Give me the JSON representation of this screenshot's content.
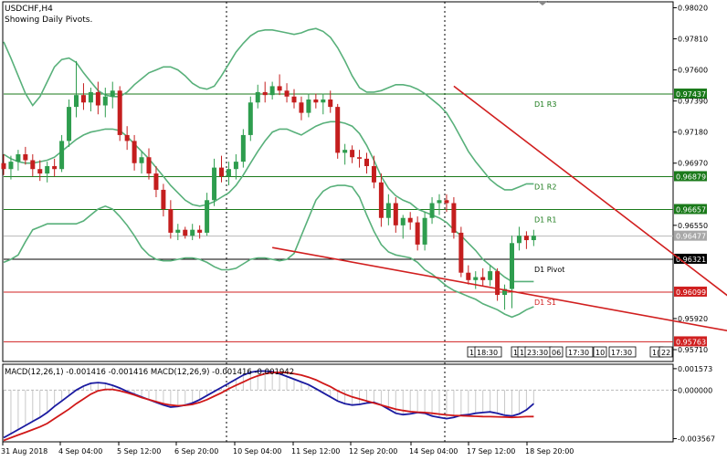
{
  "header": {
    "symbol": "USDCHF,H4",
    "subtitle": "Showing Daily Pivots."
  },
  "colors": {
    "bull": "#2e9d4e",
    "bear": "#c41e1e",
    "bands": "#58b07a",
    "trend": "#d11f1f",
    "green_level": "#1a7a1a",
    "red_level": "#d02020",
    "macd": "#1a1aa0",
    "signal": "#d01818"
  },
  "price_axis": {
    "ticks": [
      "0.98020",
      "0.97810",
      "0.97600",
      "0.97390",
      "0.97180",
      "0.96970",
      "0.96550",
      "0.95920",
      "0.95710"
    ],
    "range": [
      0.9563,
      0.9806
    ]
  },
  "levels": [
    {
      "name": "D1 R3",
      "value": 0.97437,
      "label": "0.97437",
      "kind": "green"
    },
    {
      "name": "D1 R2",
      "value": 0.96879,
      "label": "0.96879",
      "kind": "green"
    },
    {
      "name": "D1 R1",
      "value": 0.96657,
      "label": "0.96657",
      "kind": "green"
    },
    {
      "name": "D1 Pivot",
      "value": 0.96321,
      "label": "0.96321",
      "kind": "black"
    },
    {
      "name": "D1 S1",
      "value": 0.96099,
      "label": "0.96099",
      "kind": "red"
    },
    {
      "name": "D1 S2",
      "value": 0.95763,
      "label": "0.95763",
      "kind": "red"
    }
  ],
  "current_price": {
    "value": 0.96477,
    "label": "0.96477"
  },
  "time_axis": {
    "labels": [
      "31 Aug 2018",
      "4 Sep 04:00",
      "5 Sep 12:00",
      "6 Sep 20:00",
      "10 Sep 04:00",
      "11 Sep 12:00",
      "12 Sep 20:00",
      "14 Sep 04:00",
      "17 Sep 12:00",
      "18 Sep 20:00"
    ]
  },
  "period_tags": [
    "1",
    "18:30",
    "1",
    "1",
    "23:30",
    "06",
    "17:30",
    "10",
    "17:30",
    "1(",
    "22"
  ],
  "macd": {
    "label": "MACD(12,26,1) -0.001416 -0.001416 MACD(12,26,9) -0.001416 -0.001942",
    "ticks": [
      "0.001573",
      "0.000000",
      "-0.003567"
    ],
    "range": [
      -0.0038,
      0.0019
    ]
  },
  "chart_data": {
    "type": "candlestick",
    "title": "USDCHF,H4",
    "candles": [
      {
        "o": 0.9697,
        "h": 0.9703,
        "l": 0.9689,
        "c": 0.9693
      },
      {
        "o": 0.9693,
        "h": 0.9702,
        "l": 0.9686,
        "c": 0.9698
      },
      {
        "o": 0.9698,
        "h": 0.9706,
        "l": 0.9692,
        "c": 0.9703
      },
      {
        "o": 0.9703,
        "h": 0.9708,
        "l": 0.9696,
        "c": 0.9699
      },
      {
        "o": 0.9699,
        "h": 0.9703,
        "l": 0.9688,
        "c": 0.9693
      },
      {
        "o": 0.9693,
        "h": 0.9699,
        "l": 0.9685,
        "c": 0.969
      },
      {
        "o": 0.969,
        "h": 0.9698,
        "l": 0.9684,
        "c": 0.9695
      },
      {
        "o": 0.9695,
        "h": 0.97,
        "l": 0.9688,
        "c": 0.9693
      },
      {
        "o": 0.9693,
        "h": 0.9716,
        "l": 0.9691,
        "c": 0.9712
      },
      {
        "o": 0.9712,
        "h": 0.974,
        "l": 0.9708,
        "c": 0.9735
      },
      {
        "o": 0.9735,
        "h": 0.9766,
        "l": 0.9728,
        "c": 0.9743
      },
      {
        "o": 0.9743,
        "h": 0.9751,
        "l": 0.9733,
        "c": 0.9738
      },
      {
        "o": 0.9738,
        "h": 0.9748,
        "l": 0.9732,
        "c": 0.9745
      },
      {
        "o": 0.9745,
        "h": 0.9752,
        "l": 0.973,
        "c": 0.9736
      },
      {
        "o": 0.9736,
        "h": 0.9748,
        "l": 0.9728,
        "c": 0.9742
      },
      {
        "o": 0.9742,
        "h": 0.9752,
        "l": 0.9734,
        "c": 0.9746
      },
      {
        "o": 0.9746,
        "h": 0.9749,
        "l": 0.9712,
        "c": 0.9716
      },
      {
        "o": 0.9716,
        "h": 0.9722,
        "l": 0.9706,
        "c": 0.9712
      },
      {
        "o": 0.9712,
        "h": 0.9716,
        "l": 0.9692,
        "c": 0.9697
      },
      {
        "o": 0.9697,
        "h": 0.9705,
        "l": 0.969,
        "c": 0.9701
      },
      {
        "o": 0.9701,
        "h": 0.9707,
        "l": 0.9686,
        "c": 0.969
      },
      {
        "o": 0.969,
        "h": 0.9695,
        "l": 0.9674,
        "c": 0.9679
      },
      {
        "o": 0.9679,
        "h": 0.9683,
        "l": 0.9661,
        "c": 0.9666
      },
      {
        "o": 0.9666,
        "h": 0.9672,
        "l": 0.9646,
        "c": 0.965
      },
      {
        "o": 0.965,
        "h": 0.9656,
        "l": 0.9645,
        "c": 0.9652
      },
      {
        "o": 0.9652,
        "h": 0.9654,
        "l": 0.9646,
        "c": 0.9648
      },
      {
        "o": 0.9648,
        "h": 0.9656,
        "l": 0.9645,
        "c": 0.9652
      },
      {
        "o": 0.9652,
        "h": 0.9655,
        "l": 0.9646,
        "c": 0.965
      },
      {
        "o": 0.965,
        "h": 0.9677,
        "l": 0.9648,
        "c": 0.9672
      },
      {
        "o": 0.9672,
        "h": 0.97,
        "l": 0.9668,
        "c": 0.9694
      },
      {
        "o": 0.9694,
        "h": 0.9702,
        "l": 0.9684,
        "c": 0.9688
      },
      {
        "o": 0.9688,
        "h": 0.9698,
        "l": 0.9682,
        "c": 0.9693
      },
      {
        "o": 0.9693,
        "h": 0.9703,
        "l": 0.9686,
        "c": 0.9698
      },
      {
        "o": 0.9698,
        "h": 0.972,
        "l": 0.9694,
        "c": 0.9716
      },
      {
        "o": 0.9716,
        "h": 0.9742,
        "l": 0.9712,
        "c": 0.9738
      },
      {
        "o": 0.9738,
        "h": 0.975,
        "l": 0.9734,
        "c": 0.9745
      },
      {
        "o": 0.9745,
        "h": 0.9752,
        "l": 0.9738,
        "c": 0.9743
      },
      {
        "o": 0.9743,
        "h": 0.9752,
        "l": 0.974,
        "c": 0.9749
      },
      {
        "o": 0.9749,
        "h": 0.9757,
        "l": 0.9743,
        "c": 0.9746
      },
      {
        "o": 0.9746,
        "h": 0.9751,
        "l": 0.9738,
        "c": 0.9742
      },
      {
        "o": 0.9742,
        "h": 0.9747,
        "l": 0.9734,
        "c": 0.9738
      },
      {
        "o": 0.9738,
        "h": 0.9742,
        "l": 0.9726,
        "c": 0.9731
      },
      {
        "o": 0.9731,
        "h": 0.9744,
        "l": 0.9728,
        "c": 0.974
      },
      {
        "o": 0.974,
        "h": 0.9744,
        "l": 0.9734,
        "c": 0.9738
      },
      {
        "o": 0.9738,
        "h": 0.9744,
        "l": 0.973,
        "c": 0.974
      },
      {
        "o": 0.974,
        "h": 0.9746,
        "l": 0.9731,
        "c": 0.9735
      },
      {
        "o": 0.9735,
        "h": 0.9737,
        "l": 0.97,
        "c": 0.9704
      },
      {
        "o": 0.9704,
        "h": 0.971,
        "l": 0.9696,
        "c": 0.9706
      },
      {
        "o": 0.9706,
        "h": 0.9709,
        "l": 0.9697,
        "c": 0.9701
      },
      {
        "o": 0.9701,
        "h": 0.9706,
        "l": 0.9694,
        "c": 0.97
      },
      {
        "o": 0.97,
        "h": 0.9704,
        "l": 0.969,
        "c": 0.9695
      },
      {
        "o": 0.9695,
        "h": 0.9702,
        "l": 0.968,
        "c": 0.9684
      },
      {
        "o": 0.9684,
        "h": 0.969,
        "l": 0.9654,
        "c": 0.966
      },
      {
        "o": 0.966,
        "h": 0.9676,
        "l": 0.9655,
        "c": 0.967
      },
      {
        "o": 0.967,
        "h": 0.9674,
        "l": 0.965,
        "c": 0.9655
      },
      {
        "o": 0.9655,
        "h": 0.9662,
        "l": 0.9646,
        "c": 0.966
      },
      {
        "o": 0.966,
        "h": 0.9664,
        "l": 0.9652,
        "c": 0.9657
      },
      {
        "o": 0.9657,
        "h": 0.9661,
        "l": 0.9638,
        "c": 0.9642
      },
      {
        "o": 0.9642,
        "h": 0.9664,
        "l": 0.9638,
        "c": 0.966
      },
      {
        "o": 0.966,
        "h": 0.9674,
        "l": 0.9656,
        "c": 0.967
      },
      {
        "o": 0.967,
        "h": 0.9676,
        "l": 0.9662,
        "c": 0.9672
      },
      {
        "o": 0.9672,
        "h": 0.9676,
        "l": 0.9664,
        "c": 0.967
      },
      {
        "o": 0.967,
        "h": 0.9674,
        "l": 0.9646,
        "c": 0.965
      },
      {
        "o": 0.965,
        "h": 0.9654,
        "l": 0.962,
        "c": 0.9623
      },
      {
        "o": 0.9623,
        "h": 0.9628,
        "l": 0.9615,
        "c": 0.9618
      },
      {
        "o": 0.9618,
        "h": 0.9624,
        "l": 0.9612,
        "c": 0.962
      },
      {
        "o": 0.962,
        "h": 0.9626,
        "l": 0.9614,
        "c": 0.9618
      },
      {
        "o": 0.9618,
        "h": 0.9628,
        "l": 0.9614,
        "c": 0.9624
      },
      {
        "o": 0.9624,
        "h": 0.9626,
        "l": 0.9604,
        "c": 0.9608
      },
      {
        "o": 0.9608,
        "h": 0.9615,
        "l": 0.9598,
        "c": 0.9612
      },
      {
        "o": 0.9612,
        "h": 0.9648,
        "l": 0.9599,
        "c": 0.9643
      },
      {
        "o": 0.9643,
        "h": 0.9654,
        "l": 0.9638,
        "c": 0.9648
      },
      {
        "o": 0.9648,
        "h": 0.9651,
        "l": 0.9639,
        "c": 0.9645
      },
      {
        "o": 0.9645,
        "h": 0.9652,
        "l": 0.9641,
        "c": 0.9648
      }
    ],
    "bands": {
      "upper": [
        0.9779,
        0.9768,
        0.9756,
        0.9744,
        0.9736,
        0.9742,
        0.9752,
        0.9762,
        0.9767,
        0.9768,
        0.9765,
        0.9758,
        0.9752,
        0.9746,
        0.9743,
        0.9742,
        0.9742,
        0.9745,
        0.975,
        0.9754,
        0.9758,
        0.976,
        0.9762,
        0.9762,
        0.976,
        0.9756,
        0.9751,
        0.9748,
        0.9747,
        0.9749,
        0.9756,
        0.9764,
        0.9772,
        0.9778,
        0.9783,
        0.9786,
        0.9787,
        0.9787,
        0.9786,
        0.9785,
        0.9784,
        0.9785,
        0.9787,
        0.9788,
        0.9786,
        0.9782,
        0.9775,
        0.9766,
        0.9756,
        0.9748,
        0.9745,
        0.9745,
        0.9746,
        0.9748,
        0.975,
        0.975,
        0.9749,
        0.9747,
        0.9744,
        0.974,
        0.9736,
        0.9731,
        0.9723,
        0.9714,
        0.9705,
        0.9698,
        0.9692,
        0.9686,
        0.9682,
        0.9679,
        0.9679,
        0.9681,
        0.9683,
        0.9683
      ],
      "middle": [
        0.9703,
        0.97,
        0.9698,
        0.9697,
        0.9697,
        0.9698,
        0.9699,
        0.9701,
        0.9705,
        0.9709,
        0.9713,
        0.9716,
        0.9718,
        0.9719,
        0.972,
        0.972,
        0.9719,
        0.9715,
        0.971,
        0.9705,
        0.97,
        0.9694,
        0.9688,
        0.9682,
        0.9677,
        0.9672,
        0.9669,
        0.9668,
        0.9669,
        0.9671,
        0.9674,
        0.9677,
        0.9682,
        0.9689,
        0.9697,
        0.9705,
        0.9712,
        0.9718,
        0.972,
        0.972,
        0.9718,
        0.9716,
        0.9719,
        0.9722,
        0.9724,
        0.9725,
        0.9725,
        0.9724,
        0.9722,
        0.9717,
        0.9709,
        0.9699,
        0.9688,
        0.968,
        0.9675,
        0.9672,
        0.967,
        0.9666,
        0.9664,
        0.9662,
        0.966,
        0.9657,
        0.9652,
        0.9648,
        0.9643,
        0.9638,
        0.9632,
        0.9628,
        0.9624,
        0.962,
        0.9617,
        0.9617,
        0.9617,
        0.9617
      ],
      "lower": [
        0.963,
        0.9632,
        0.9635,
        0.9644,
        0.9652,
        0.9654,
        0.9656,
        0.9656,
        0.9656,
        0.9656,
        0.9656,
        0.9658,
        0.9662,
        0.9666,
        0.9668,
        0.9666,
        0.9661,
        0.9655,
        0.9648,
        0.964,
        0.9635,
        0.9632,
        0.9631,
        0.9631,
        0.9632,
        0.9633,
        0.9633,
        0.9632,
        0.963,
        0.9627,
        0.9625,
        0.9625,
        0.9626,
        0.9629,
        0.9632,
        0.9633,
        0.9633,
        0.9632,
        0.9631,
        0.9632,
        0.9636,
        0.9648,
        0.966,
        0.9672,
        0.9678,
        0.9681,
        0.9682,
        0.9682,
        0.9681,
        0.9674,
        0.9662,
        0.9651,
        0.9642,
        0.9637,
        0.9635,
        0.9634,
        0.9633,
        0.963,
        0.9625,
        0.9622,
        0.9618,
        0.9614,
        0.9611,
        0.9609,
        0.9607,
        0.9605,
        0.9602,
        0.96,
        0.9598,
        0.9595,
        0.9593,
        0.9595,
        0.9598,
        0.96
      ]
    },
    "trendlines": [
      {
        "x1": 62,
        "y1": 0.9749,
        "x2": 108,
        "y2": 0.95763
      },
      {
        "x1": 37,
        "y1": 0.964,
        "x2": 108,
        "y2": 0.95763
      }
    ],
    "macd_main": [
      -0.0035,
      -0.0032,
      -0.0029,
      -0.0026,
      -0.0023,
      -0.002,
      -0.00165,
      -0.0012,
      -0.0008,
      -0.0004,
      0.0,
      0.0003,
      0.0005,
      0.00055,
      0.0005,
      0.00035,
      0.00015,
      -0.0001,
      -0.0003,
      -0.0005,
      -0.0007,
      -0.0009,
      -0.0011,
      -0.00125,
      -0.0012,
      -0.0011,
      -0.00095,
      -0.0007,
      -0.0004,
      -0.0001,
      0.0002,
      0.0005,
      0.0008,
      0.0011,
      0.0013,
      0.0014,
      0.0014,
      0.00135,
      0.0012,
      0.001,
      0.0008,
      0.0006,
      0.0004,
      0.0001,
      -0.0002,
      -0.0005,
      -0.0008,
      -0.001,
      -0.0011,
      -0.00105,
      -0.00095,
      -0.0009,
      -0.0011,
      -0.0014,
      -0.0017,
      -0.0018,
      -0.00175,
      -0.00165,
      -0.0017,
      -0.0019,
      -0.002,
      -0.0021,
      -0.002,
      -0.00185,
      -0.0018,
      -0.0017,
      -0.00165,
      -0.0016,
      -0.0017,
      -0.00185,
      -0.0019,
      -0.00175,
      -0.00145,
      -0.001
    ],
    "macd_signal": [
      -0.0037,
      -0.0035,
      -0.0033,
      -0.0031,
      -0.0029,
      -0.0027,
      -0.00245,
      -0.0021,
      -0.00175,
      -0.0014,
      -0.001,
      -0.00065,
      -0.0003,
      -5e-05,
      5e-05,
      5e-05,
      -5e-05,
      -0.0002,
      -0.00035,
      -0.00055,
      -0.0007,
      -0.00085,
      -0.001,
      -0.0011,
      -0.00115,
      -0.00112,
      -0.00105,
      -0.0009,
      -0.0007,
      -0.00045,
      -0.0002,
      0.0001,
      0.00035,
      0.0006,
      0.00085,
      0.00105,
      0.0012,
      0.00128,
      0.0013,
      0.00128,
      0.0012,
      0.0011,
      0.00095,
      0.00075,
      0.0005,
      0.00025,
      -5e-05,
      -0.0003,
      -0.0005,
      -0.00065,
      -0.0008,
      -0.00095,
      -0.0011,
      -0.00125,
      -0.0014,
      -0.0015,
      -0.00158,
      -0.00162,
      -0.00165,
      -0.0017,
      -0.00176,
      -0.00182,
      -0.00186,
      -0.00188,
      -0.0019,
      -0.00192,
      -0.00194,
      -0.00195,
      -0.00196,
      -0.00198,
      -0.002,
      -0.00198,
      -0.00195,
      -0.00194
    ]
  }
}
